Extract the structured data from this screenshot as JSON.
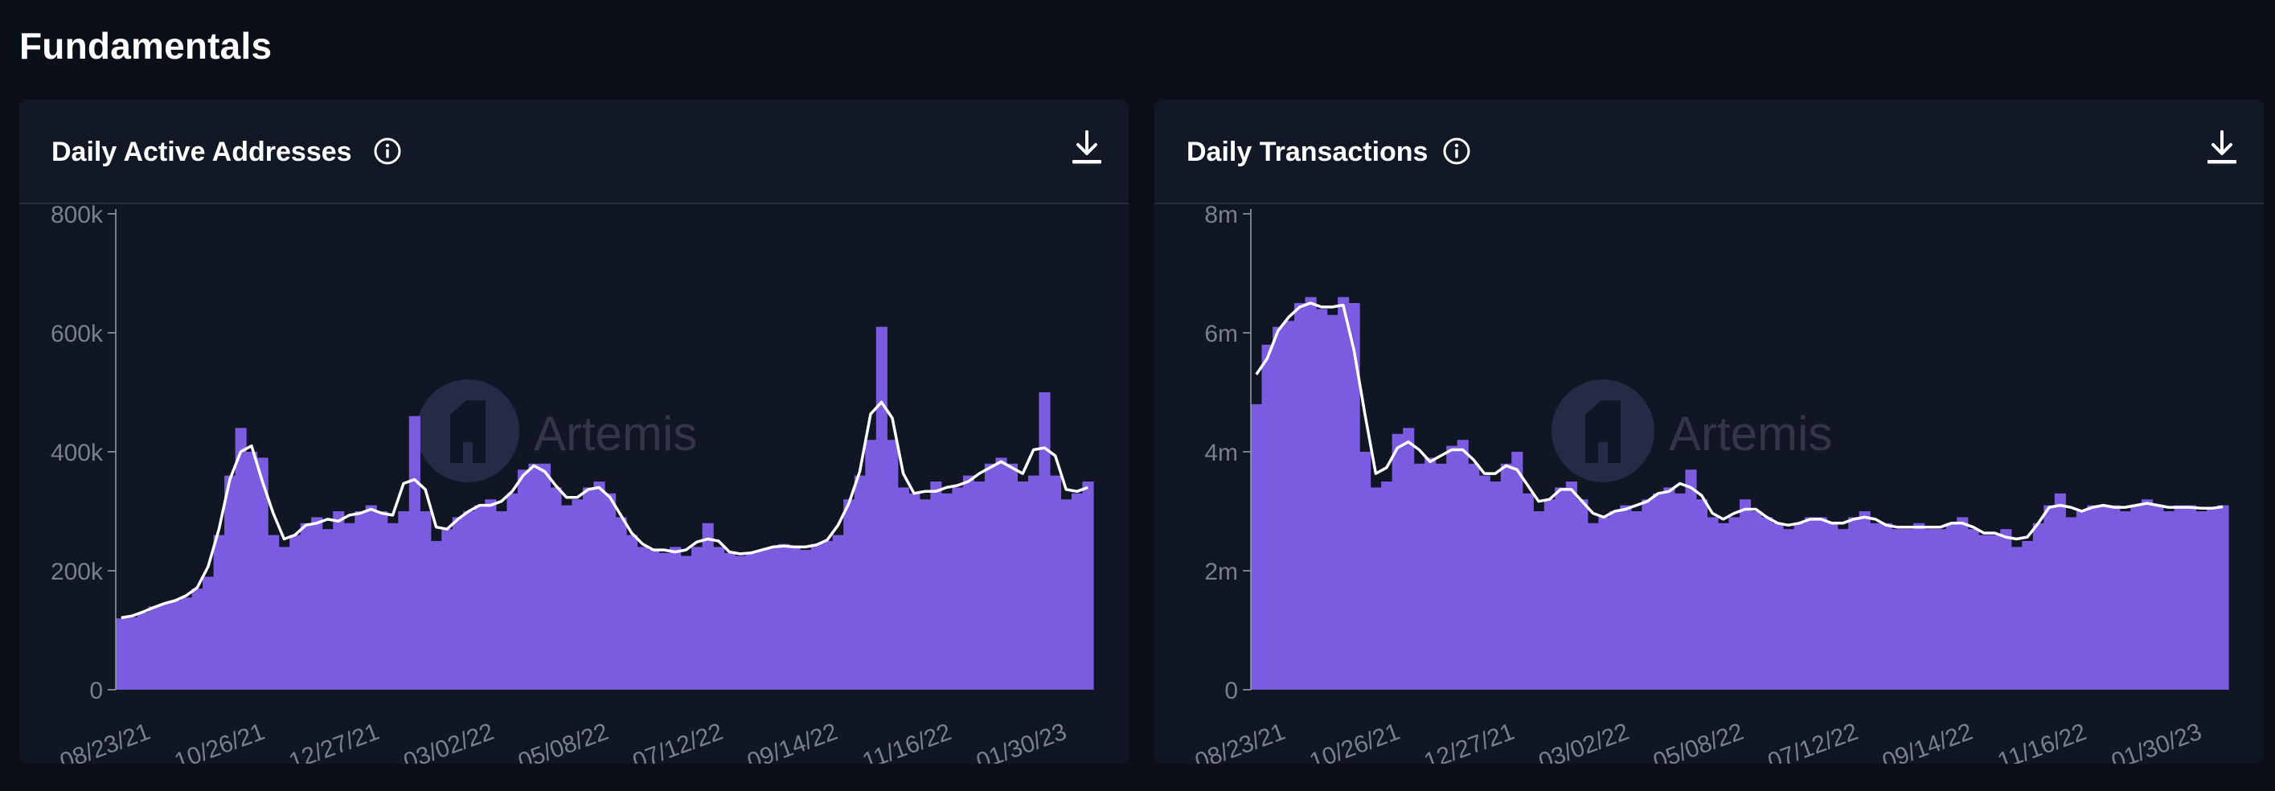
{
  "page": {
    "title": "Fundamentals"
  },
  "colors": {
    "background": "#0b0f19",
    "card": "#121826",
    "bar": "#7b5ce0",
    "line": "#ffffff",
    "axis_text": "#7a7f8c"
  },
  "watermark": {
    "text": "Artemis"
  },
  "icons": {
    "info": "info-icon",
    "download": "download-icon",
    "logo": "artemis-logo-icon"
  },
  "chart_data": [
    {
      "type": "bar",
      "title": "Daily Active Addresses",
      "ylim": [
        0,
        800000
      ],
      "y_ticks": [
        0,
        200000,
        400000,
        600000,
        800000
      ],
      "y_tick_labels": [
        "0",
        "200k",
        "400k",
        "600k",
        "800k"
      ],
      "x_tick_labels": [
        "08/23/21",
        "10/26/21",
        "12/27/21",
        "03/02/22",
        "05/08/22",
        "07/12/22",
        "09/14/22",
        "11/16/22",
        "01/30/23"
      ],
      "grid": false,
      "overlay": "moving-average line (white)",
      "series": [
        {
          "values": [
            120000,
            122000,
            130000,
            140000,
            145000,
            150000,
            155000,
            170000,
            190000,
            260000,
            360000,
            440000,
            400000,
            390000,
            260000,
            240000,
            260000,
            280000,
            290000,
            270000,
            300000,
            280000,
            300000,
            310000,
            300000,
            280000,
            300000,
            460000,
            300000,
            250000,
            270000,
            290000,
            300000,
            310000,
            320000,
            300000,
            330000,
            370000,
            380000,
            380000,
            340000,
            310000,
            320000,
            340000,
            350000,
            330000,
            290000,
            260000,
            240000,
            235000,
            230000,
            240000,
            225000,
            240000,
            280000,
            240000,
            230000,
            225000,
            230000,
            235000,
            240000,
            245000,
            240000,
            235000,
            245000,
            250000,
            260000,
            320000,
            360000,
            420000,
            610000,
            420000,
            340000,
            330000,
            320000,
            350000,
            330000,
            340000,
            360000,
            350000,
            380000,
            390000,
            380000,
            350000,
            360000,
            500000,
            360000,
            320000,
            330000,
            350000
          ]
        }
      ]
    },
    {
      "type": "bar",
      "title": "Daily Transactions",
      "ylim": [
        0,
        8000000
      ],
      "y_ticks": [
        0,
        2000000,
        4000000,
        6000000,
        8000000
      ],
      "y_tick_labels": [
        "0",
        "2m",
        "4m",
        "6m",
        "8m"
      ],
      "x_tick_labels": [
        "08/23/21",
        "10/26/21",
        "12/27/21",
        "03/02/22",
        "05/08/22",
        "07/12/22",
        "09/14/22",
        "11/16/22",
        "01/30/23"
      ],
      "grid": false,
      "overlay": "moving-average line (white)",
      "series": [
        {
          "values": [
            4800000,
            5800000,
            6100000,
            6200000,
            6500000,
            6600000,
            6400000,
            6300000,
            6600000,
            6500000,
            4000000,
            3400000,
            3500000,
            4300000,
            4400000,
            3800000,
            3900000,
            3800000,
            4100000,
            4200000,
            3800000,
            3600000,
            3500000,
            3800000,
            4000000,
            3300000,
            3000000,
            3200000,
            3400000,
            3500000,
            3200000,
            2800000,
            2900000,
            3000000,
            3100000,
            3000000,
            3200000,
            3300000,
            3400000,
            3300000,
            3700000,
            3200000,
            2900000,
            2800000,
            2900000,
            3200000,
            3000000,
            2900000,
            2800000,
            2700000,
            2800000,
            2900000,
            2900000,
            2800000,
            2700000,
            2900000,
            3000000,
            2800000,
            2800000,
            2700000,
            2700000,
            2800000,
            2700000,
            2700000,
            2800000,
            2900000,
            2700000,
            2600000,
            2600000,
            2700000,
            2400000,
            2500000,
            2800000,
            3100000,
            3300000,
            2900000,
            3000000,
            3100000,
            3100000,
            3100000,
            3000000,
            3100000,
            3200000,
            3100000,
            3000000,
            3100000,
            3100000,
            3000000,
            3050000,
            3100000
          ]
        }
      ]
    }
  ]
}
